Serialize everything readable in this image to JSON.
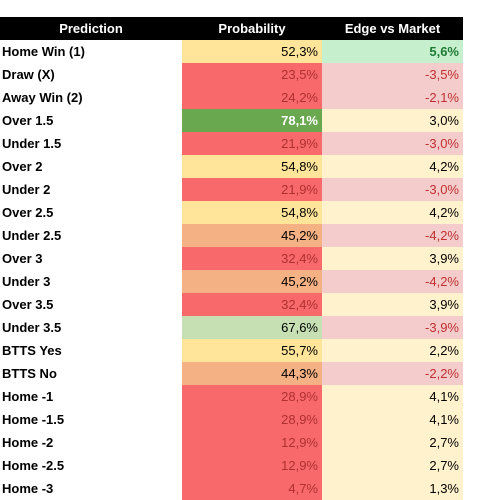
{
  "table": {
    "header": [
      "Prediction",
      "Probability",
      "Edge vs Market"
    ],
    "rows": [
      [
        "Home Win (1)",
        "52,3%",
        "5,6%"
      ],
      [
        "Draw (X)",
        "23,5%",
        "-3,5%"
      ],
      [
        "Away Win (2)",
        "24,2%",
        "-2,1%"
      ],
      [
        "Over 1.5",
        "78,1%",
        "3,0%"
      ],
      [
        "Under 1.5",
        "21,9%",
        "-3,0%"
      ],
      [
        "Over 2",
        "54,8%",
        "4,2%"
      ],
      [
        "Under 2",
        "21,9%",
        "-3,0%"
      ],
      [
        "Over 2.5",
        "54,8%",
        "4,2%"
      ],
      [
        "Under 2.5",
        "45,2%",
        "-4,2%"
      ],
      [
        "Over 3",
        "32,4%",
        "3,9%"
      ],
      [
        "Under 3",
        "45,2%",
        "-4,2%"
      ],
      [
        "Over 3.5",
        "32,4%",
        "3,9%"
      ],
      [
        "Under 3.5",
        "67,6%",
        "-3,9%"
      ],
      [
        "BTTS Yes",
        "55,7%",
        "2,2%"
      ],
      [
        "BTTS No",
        "44,3%",
        "-2,2%"
      ],
      [
        "Home -1",
        "28,9%",
        "4,1%"
      ],
      [
        "Home -1.5",
        "28,9%",
        "4,1%"
      ],
      [
        "Home -2",
        "12,9%",
        "2,7%"
      ],
      [
        "Home -2.5",
        "12,9%",
        "2,7%"
      ],
      [
        "Home -3",
        "4,7%",
        "1,3%"
      ]
    ],
    "fills": [
      [
        "#ffe599",
        "#c6efce"
      ],
      [
        "#f8696b",
        "#f4cccc"
      ],
      [
        "#f8696b",
        "#f4cccc"
      ],
      [
        "#6aa84f",
        "#fff2cc"
      ],
      [
        "#f8696b",
        "#f4cccc"
      ],
      [
        "#ffe599",
        "#fff2cc"
      ],
      [
        "#f8696b",
        "#f4cccc"
      ],
      [
        "#ffe599",
        "#fff2cc"
      ],
      [
        "#f4b183",
        "#f4cccc"
      ],
      [
        "#f8696b",
        "#fff2cc"
      ],
      [
        "#f4b183",
        "#f4cccc"
      ],
      [
        "#f8696b",
        "#fff2cc"
      ],
      [
        "#c6e0b4",
        "#f4cccc"
      ],
      [
        "#ffe599",
        "#fff2cc"
      ],
      [
        "#f4b183",
        "#f4cccc"
      ],
      [
        "#f8696b",
        "#fff2cc"
      ],
      [
        "#f8696b",
        "#fff2cc"
      ],
      [
        "#f8696b",
        "#fff2cc"
      ],
      [
        "#f8696b",
        "#fff2cc"
      ],
      [
        "#f8696b",
        "#fff2cc"
      ]
    ],
    "text_colors": [
      [
        "#000000",
        "#1e7b34"
      ],
      [
        "#b03030",
        "#c03030"
      ],
      [
        "#b03030",
        "#c03030"
      ],
      [
        "#ffffff",
        "#000000"
      ],
      [
        "#b03030",
        "#c03030"
      ],
      [
        "#000000",
        "#000000"
      ],
      [
        "#b03030",
        "#c03030"
      ],
      [
        "#000000",
        "#000000"
      ],
      [
        "#000000",
        "#c03030"
      ],
      [
        "#b03030",
        "#000000"
      ],
      [
        "#000000",
        "#c03030"
      ],
      [
        "#b03030",
        "#000000"
      ],
      [
        "#000000",
        "#c03030"
      ],
      [
        "#000000",
        "#000000"
      ],
      [
        "#000000",
        "#c03030"
      ],
      [
        "#b03030",
        "#000000"
      ],
      [
        "#b03030",
        "#000000"
      ],
      [
        "#b03030",
        "#000000"
      ],
      [
        "#b03030",
        "#000000"
      ],
      [
        "#b03030",
        "#000000"
      ]
    ]
  }
}
